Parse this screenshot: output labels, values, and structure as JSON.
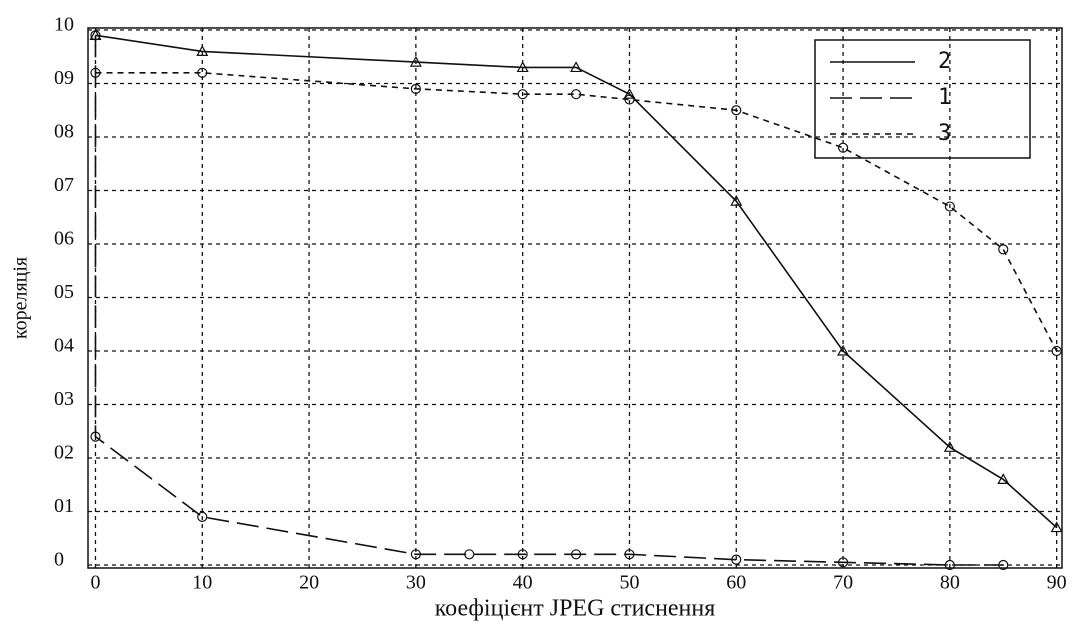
{
  "chart_data": {
    "type": "line",
    "x_label": "коефіцієнт JPEG стиснення",
    "y_label": "кореляція",
    "xlim": [
      -0.7,
      90.5
    ],
    "ylim": [
      0,
      1
    ],
    "xticks": [
      0,
      10,
      20,
      30,
      40,
      50,
      60,
      70,
      80,
      90
    ],
    "yticks": [
      0,
      {
        "value": 0.1,
        "label": "01"
      },
      {
        "value": 0.2,
        "label": "02"
      },
      {
        "value": 0.3,
        "label": "03"
      },
      {
        "value": 0.4,
        "label": "04"
      },
      {
        "value": 0.5,
        "label": "05"
      },
      {
        "value": 0.6,
        "label": "06"
      },
      {
        "value": 0.7,
        "label": "07"
      },
      {
        "value": 0.8,
        "label": "08"
      },
      {
        "value": 0.9,
        "label": "09"
      },
      {
        "value": 1.0,
        "label": "10"
      }
    ],
    "grid": true,
    "legend": "upper right",
    "series": [
      {
        "name": "2",
        "color": "#111111",
        "dash": "solid",
        "marker": "triangle",
        "x": [
          0,
          10,
          30,
          40,
          45,
          50,
          60,
          70,
          80,
          85,
          90
        ],
        "values": [
          0.99,
          0.96,
          0.94,
          0.93,
          0.93,
          0.88,
          0.68,
          0.4,
          0.22,
          0.16,
          0.07
        ]
      },
      {
        "name": "1",
        "color": "#111111",
        "dash": "long",
        "marker": "circle",
        "x": [
          0,
          0,
          10,
          30,
          35,
          40,
          45,
          50,
          60,
          70,
          80,
          85
        ],
        "values": [
          0.99,
          0.24,
          0.09,
          0.02,
          0.02,
          0.02,
          0.02,
          0.02,
          0.01,
          0.005,
          0,
          0
        ]
      },
      {
        "name": "3",
        "color": "#111111",
        "dash": "short",
        "marker": "circle",
        "x": [
          0,
          10,
          30,
          40,
          45,
          50,
          60,
          70,
          80,
          85,
          90
        ],
        "values": [
          0.92,
          0.92,
          0.89,
          0.88,
          0.88,
          0.87,
          0.85,
          0.78,
          0.67,
          0.59,
          0.4
        ]
      }
    ]
  }
}
